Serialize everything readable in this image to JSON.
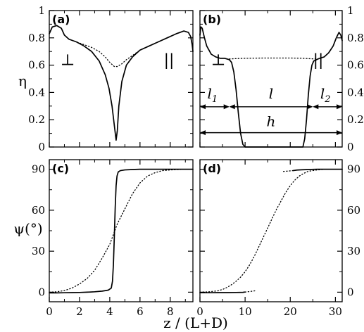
{
  "figure": {
    "y_label_top": "η",
    "y_label_bottom": "ψ(°)",
    "x_label": "z / (L+D)"
  },
  "chart_data": [
    {
      "panel": "(a)",
      "type": "line",
      "xlim": [
        0,
        9.5
      ],
      "ylim": [
        0,
        1
      ],
      "x_ticks": [
        0,
        2,
        4,
        6,
        8
      ],
      "y_ticks": [
        0,
        0.2,
        0.4,
        0.6,
        0.8,
        1
      ],
      "y_tick_labels": [
        "0",
        "0.2",
        "0.4",
        "0.6",
        "0.8",
        "1"
      ],
      "annotations": [
        "⊥",
        "||"
      ],
      "series": [
        {
          "style": "solid",
          "x": [
            0,
            0.2,
            0.5,
            0.8,
            1.0,
            1.3,
            1.8,
            2.3,
            2.8,
            3.3,
            3.7,
            3.95,
            4.15,
            4.3,
            4.42,
            4.5,
            4.6,
            4.8,
            5.1,
            5.5,
            6.0,
            6.6,
            7.2,
            7.8,
            8.4,
            8.9,
            9.2,
            9.35,
            9.45,
            9.5
          ],
          "y": [
            0.83,
            0.88,
            0.89,
            0.87,
            0.82,
            0.79,
            0.77,
            0.74,
            0.7,
            0.63,
            0.53,
            0.43,
            0.3,
            0.16,
            0.05,
            0.12,
            0.3,
            0.48,
            0.6,
            0.66,
            0.71,
            0.74,
            0.77,
            0.8,
            0.83,
            0.85,
            0.84,
            0.81,
            0.75,
            0.7
          ]
        },
        {
          "style": "dotted",
          "x": [
            1.3,
            1.8,
            2.3,
            2.8,
            3.3,
            3.7,
            4.0,
            4.3,
            4.5,
            4.8,
            5.1,
            5.5,
            6.0,
            6.6
          ],
          "y": [
            0.79,
            0.77,
            0.75,
            0.73,
            0.7,
            0.66,
            0.62,
            0.59,
            0.59,
            0.61,
            0.64,
            0.67,
            0.71,
            0.74
          ]
        }
      ]
    },
    {
      "panel": "(b)",
      "type": "line",
      "xlim": [
        0,
        31.5
      ],
      "ylim": [
        0,
        1
      ],
      "x_ticks": [
        0,
        10,
        20,
        30
      ],
      "y_ticks": [
        0,
        0.2,
        0.4,
        0.6,
        0.8,
        1
      ],
      "y_tick_labels": [
        "0",
        "0.2",
        "0.4",
        "0.6",
        "0.8",
        "1"
      ],
      "annotations": [
        "⊥",
        "||"
      ],
      "dimension_labels": {
        "l1": "l",
        "l1_sub": "1",
        "l": "l",
        "l2": "l",
        "l2_sub": "2",
        "h": "h"
      },
      "dimensions": {
        "l1": [
          0,
          6.5
        ],
        "l": [
          6.5,
          25.0
        ],
        "l2": [
          25.0,
          31.5
        ],
        "h": [
          0,
          31.5
        ],
        "y_l": 0.295,
        "y_h": 0.105
      },
      "series": [
        {
          "style": "solid",
          "x": [
            0,
            0.2,
            0.5,
            1.0,
            1.5,
            2.5,
            3.5,
            4.5,
            5.5,
            6.5,
            7.0,
            7.5,
            8.0,
            8.5,
            9.0,
            9.5,
            10.0,
            22.8,
            23.2,
            23.6,
            24.0,
            24.4,
            24.8,
            25.2,
            25.8,
            26.5,
            27.5,
            28.5,
            29.5,
            30.2,
            30.8,
            31.2,
            31.5
          ],
          "y": [
            0.82,
            0.88,
            0.87,
            0.8,
            0.74,
            0.68,
            0.66,
            0.65,
            0.65,
            0.64,
            0.62,
            0.55,
            0.42,
            0.25,
            0.1,
            0.02,
            0,
            0,
            0.06,
            0.2,
            0.38,
            0.52,
            0.6,
            0.63,
            0.64,
            0.65,
            0.66,
            0.69,
            0.74,
            0.8,
            0.84,
            0.82,
            0.78
          ]
        },
        {
          "style": "dotted",
          "x": [
            6.5,
            8,
            10,
            12,
            14,
            16,
            18,
            20,
            22,
            24,
            25.5
          ],
          "y": [
            0.645,
            0.648,
            0.65,
            0.651,
            0.652,
            0.652,
            0.652,
            0.652,
            0.651,
            0.648,
            0.645
          ]
        }
      ]
    },
    {
      "panel": "(c)",
      "type": "line",
      "xlim": [
        0,
        9.5
      ],
      "ylim": [
        -7,
        97
      ],
      "x_ticks": [
        0,
        2,
        4,
        6,
        8
      ],
      "x_tick_labels": [
        "0",
        "2",
        "4",
        "6",
        "8"
      ],
      "y_ticks": [
        0,
        30,
        60,
        90
      ],
      "y_tick_labels": [
        "0",
        "30",
        "60",
        "90"
      ],
      "series": [
        {
          "style": "solid",
          "x": [
            0,
            0.5,
            1,
            1.5,
            2,
            2.5,
            3,
            3.5,
            3.9,
            4.1,
            4.18,
            4.24,
            4.3,
            4.36,
            4.42,
            4.48,
            4.56,
            4.7,
            5.0,
            5.5,
            6,
            7,
            8,
            9,
            9.5
          ],
          "y": [
            -0.5,
            -0.5,
            -0.4,
            -0.3,
            -0.2,
            0,
            0.3,
            0.8,
            1.5,
            3,
            8,
            20,
            40,
            62,
            78,
            85,
            88,
            89,
            89.5,
            89.8,
            90,
            90,
            90,
            90,
            90
          ]
        },
        {
          "style": "dotted",
          "x": [
            0,
            0.5,
            1,
            1.5,
            2,
            2.5,
            3,
            3.5,
            4,
            4.5,
            5,
            5.5,
            6,
            6.5,
            7,
            7.5,
            8,
            9,
            9.5
          ],
          "y": [
            0,
            0.3,
            1.2,
            3,
            6,
            10,
            16,
            25,
            35,
            50,
            61,
            72,
            80,
            85,
            87.5,
            89,
            89.5,
            90,
            90
          ]
        }
      ]
    },
    {
      "panel": "(d)",
      "type": "line",
      "xlim": [
        0,
        31.5
      ],
      "ylim": [
        -7,
        97
      ],
      "x_ticks": [
        0,
        10,
        20,
        30
      ],
      "x_tick_labels": [
        "0",
        "10",
        "20",
        "30"
      ],
      "y_ticks": [
        0,
        30,
        60,
        90
      ],
      "y_tick_labels": [
        "0",
        "30",
        "60",
        "90"
      ],
      "series": [
        {
          "style": "solid",
          "x": [
            0,
            2,
            4,
            6,
            8,
            9.5,
            10
          ],
          "y": [
            -0.4,
            -0.4,
            -0.3,
            -0.3,
            -0.2,
            -0.1,
            0.1
          ]
        },
        {
          "style": "dotted",
          "x": [
            10,
            10.8,
            11.5,
            12.2
          ],
          "y": [
            0.1,
            0.4,
            0.7,
            1.0
          ]
        },
        {
          "style": "dotted",
          "x": [
            18.5,
            19.3,
            20,
            20.6
          ],
          "y": [
            88.4,
            88.6,
            88.8,
            89.0
          ]
        },
        {
          "style": "solid",
          "x": [
            20.6,
            21.5,
            22.5,
            24,
            26,
            28,
            30,
            31.5
          ],
          "y": [
            89.0,
            89.4,
            89.6,
            89.8,
            90,
            90,
            90,
            90
          ]
        },
        {
          "style": "dotted",
          "x": [
            0,
            2,
            4,
            5,
            6,
            7,
            8,
            9,
            10,
            11,
            12,
            13,
            14,
            15,
            16,
            17,
            18,
            19,
            20,
            21,
            22,
            23,
            24,
            26,
            28,
            30,
            31.5
          ],
          "y": [
            0,
            0.3,
            1,
            2,
            3.5,
            5.5,
            8,
            11,
            15,
            20,
            26,
            33,
            40,
            47,
            54,
            61,
            67,
            73,
            78,
            82,
            85,
            87,
            88.5,
            89.5,
            90,
            90,
            90
          ]
        }
      ]
    }
  ]
}
